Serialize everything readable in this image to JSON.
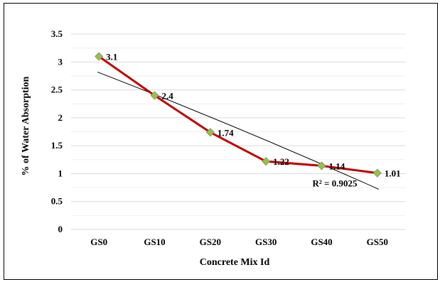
{
  "chart_data": {
    "type": "line",
    "categories": [
      "GS0",
      "GS10",
      "GS20",
      "GS30",
      "GS40",
      "GS50"
    ],
    "series": [
      {
        "values": [
          3.1,
          2.4,
          1.74,
          1.22,
          1.14,
          1.01
        ],
        "data_labels": [
          "3.1",
          "2.4",
          "1.74",
          "1.22",
          "1.14",
          "1.01"
        ]
      }
    ],
    "trendline": {
      "type": "polynomial",
      "start": 2.82,
      "end": 0.72,
      "label": "R² = 0.9025"
    },
    "xlabel": "Concrete Mix Id",
    "ylabel": "% of Water Absorption",
    "ylim": [
      0,
      3.5
    ],
    "yticks": [
      "0",
      "0.5",
      "1",
      "1.5",
      "2",
      "2.5",
      "3",
      "3.5"
    ],
    "grid": true,
    "colors": {
      "line": "#C00000",
      "marker": "#9BBB59",
      "trendline": "#000000",
      "grid": "#D9D9D9"
    }
  }
}
